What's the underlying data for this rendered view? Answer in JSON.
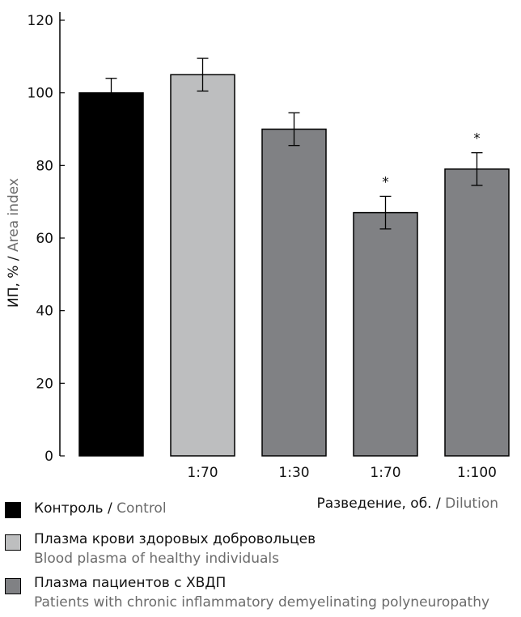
{
  "chart_data": {
    "type": "bar",
    "ylabel_ru": "ИП, % /",
    "ylabel_en": "Area index",
    "ylim": [
      0,
      120
    ],
    "yticks": [
      "0",
      "20",
      "40",
      "60",
      "80",
      "100",
      "120"
    ],
    "bars": [
      {
        "category": "",
        "value": 100,
        "err": 4,
        "color": "#000000",
        "star": ""
      },
      {
        "category": "1:70",
        "value": 105,
        "err": 4.5,
        "color": "#bdbebf",
        "star": ""
      },
      {
        "category": "1:30",
        "value": 90,
        "err": 4.5,
        "color": "#808184",
        "star": ""
      },
      {
        "category": "1:70",
        "value": 67,
        "err": 4.5,
        "color": "#808184",
        "star": "*"
      },
      {
        "category": "1:100",
        "value": 79,
        "err": 4.5,
        "color": "#808184",
        "star": "*"
      }
    ],
    "xlabel_ru": "Разведение, об. /",
    "xlabel_en": "Dilution",
    "legend": [
      {
        "ru": "Контроль /",
        "en": "Control",
        "color": "#000000"
      },
      {
        "ru": "Плазма крови здоровых добровольцев",
        "en": "Blood plasma of healthy individuals",
        "color": "#bdbebf"
      },
      {
        "ru": "Плазма пациентов с ХВДП",
        "en": "Patients with chronic inflammatory demyelinating polyneuropathy",
        "color": "#808184"
      }
    ]
  }
}
